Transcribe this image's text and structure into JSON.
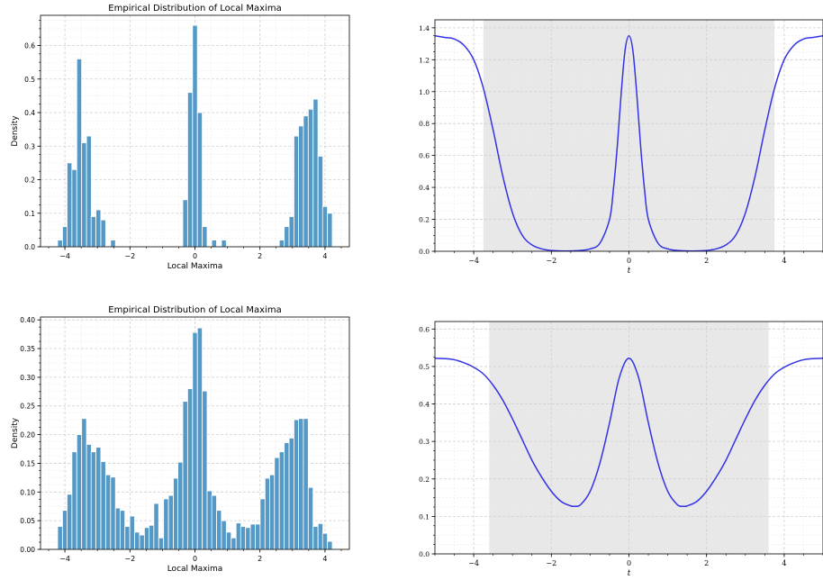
{
  "colors": {
    "bar": "#5599c7",
    "bar_edge": "#ffffff",
    "curve": "#3333e6",
    "shade": "#e8e8e8",
    "grid": "#cfcfcf"
  },
  "chart_data": [
    {
      "id": "hist-top",
      "type": "bar",
      "title": "Empirical Distribution of Local Maxima",
      "xlabel": "Local Maxima",
      "ylabel": "Density",
      "xlim": [
        -4.75,
        4.75
      ],
      "ylim": [
        0,
        0.69
      ],
      "bin_width": 0.148,
      "xticks": [
        -4,
        -2,
        0,
        2,
        4
      ],
      "xtick_labels": [
        "−4",
        "−2",
        "0",
        "2",
        "4"
      ],
      "yticks": [
        0,
        0.1,
        0.2,
        0.3,
        0.4,
        0.5,
        0.6
      ],
      "ytick_labels": [
        "0.0",
        "0.1",
        "0.2",
        "0.3",
        "0.4",
        "0.5",
        "0.6"
      ],
      "grid": true,
      "bins": [
        {
          "x": -4.15,
          "y": 0.02
        },
        {
          "x": -4.0,
          "y": 0.06
        },
        {
          "x": -3.86,
          "y": 0.25
        },
        {
          "x": -3.71,
          "y": 0.23
        },
        {
          "x": -3.56,
          "y": 0.56
        },
        {
          "x": -3.41,
          "y": 0.31
        },
        {
          "x": -3.26,
          "y": 0.33
        },
        {
          "x": -3.12,
          "y": 0.09
        },
        {
          "x": -2.97,
          "y": 0.11
        },
        {
          "x": -2.82,
          "y": 0.08
        },
        {
          "x": -2.52,
          "y": 0.02
        },
        {
          "x": -0.3,
          "y": 0.14
        },
        {
          "x": -0.15,
          "y": 0.46
        },
        {
          "x": 0.0,
          "y": 0.66
        },
        {
          "x": 0.15,
          "y": 0.4
        },
        {
          "x": 0.3,
          "y": 0.06
        },
        {
          "x": 0.59,
          "y": 0.02
        },
        {
          "x": 0.89,
          "y": 0.02
        },
        {
          "x": 2.67,
          "y": 0.02
        },
        {
          "x": 2.82,
          "y": 0.06
        },
        {
          "x": 2.97,
          "y": 0.09
        },
        {
          "x": 3.12,
          "y": 0.33
        },
        {
          "x": 3.26,
          "y": 0.36
        },
        {
          "x": 3.41,
          "y": 0.39
        },
        {
          "x": 3.56,
          "y": 0.41
        },
        {
          "x": 3.71,
          "y": 0.44
        },
        {
          "x": 3.86,
          "y": 0.27
        },
        {
          "x": 4.0,
          "y": 0.12
        },
        {
          "x": 4.15,
          "y": 0.1
        }
      ]
    },
    {
      "id": "curve-top",
      "type": "line",
      "title": "",
      "xlabel": "t",
      "ylabel": "",
      "xlim": [
        -5,
        5
      ],
      "ylim": [
        0,
        1.45
      ],
      "xticks": [
        -4,
        -2,
        0,
        2,
        4
      ],
      "xtick_labels": [
        "−4",
        "−2",
        "0",
        "2",
        "4"
      ],
      "yticks": [
        0,
        0.2,
        0.4,
        0.6,
        0.8,
        1.0,
        1.2,
        1.4
      ],
      "ytick_labels": [
        "0.0",
        "0.2",
        "0.4",
        "0.6",
        "0.8",
        "1.0",
        "1.2",
        "1.4"
      ],
      "grid": true,
      "shaded_region": [
        -3.75,
        3.75
      ],
      "series": [
        {
          "x": [
            -5,
            -4.75,
            -4.5,
            -4.25,
            -4,
            -3.75,
            -3.5,
            -3.25,
            -3,
            -2.75,
            -2.5,
            -2.25,
            -2,
            -1.75,
            -1.5,
            -1.25,
            -1,
            -0.75,
            -0.5,
            -0.4,
            -0.3,
            -0.2,
            -0.1,
            0,
            0.1,
            0.2,
            0.3,
            0.4,
            0.5,
            0.75,
            1,
            1.25,
            1.5,
            1.75,
            2,
            2.25,
            2.5,
            2.75,
            3,
            3.25,
            3.5,
            3.75,
            4,
            4.25,
            4.5,
            4.75,
            5
          ],
          "y": [
            1.35,
            1.34,
            1.33,
            1.29,
            1.2,
            1.02,
            0.76,
            0.47,
            0.24,
            0.1,
            0.04,
            0.015,
            0.005,
            0.002,
            0.002,
            0.005,
            0.015,
            0.05,
            0.2,
            0.39,
            0.66,
            0.99,
            1.26,
            1.35,
            1.26,
            0.99,
            0.66,
            0.39,
            0.2,
            0.05,
            0.015,
            0.005,
            0.002,
            0.002,
            0.005,
            0.015,
            0.04,
            0.1,
            0.24,
            0.47,
            0.76,
            1.02,
            1.2,
            1.29,
            1.33,
            1.34,
            1.35
          ]
        }
      ]
    },
    {
      "id": "hist-bottom",
      "type": "bar",
      "title": "Empirical Distribution of Local Maxima",
      "xlabel": "Local Maxima",
      "ylabel": "Density",
      "xlim": [
        -4.75,
        4.75
      ],
      "ylim": [
        0,
        0.405
      ],
      "bin_width": 0.148,
      "xticks": [
        -4,
        -2,
        0,
        2,
        4
      ],
      "xtick_labels": [
        "−4",
        "−2",
        "0",
        "2",
        "4"
      ],
      "yticks": [
        0,
        0.05,
        0.1,
        0.15,
        0.2,
        0.25,
        0.3,
        0.35,
        0.4
      ],
      "ytick_labels": [
        "0.00",
        "0.05",
        "0.10",
        "0.15",
        "0.20",
        "0.25",
        "0.30",
        "0.35",
        "0.40"
      ],
      "grid": true,
      "bins": [
        {
          "x": -4.15,
          "y": 0.04
        },
        {
          "x": -4.0,
          "y": 0.068
        },
        {
          "x": -3.86,
          "y": 0.096
        },
        {
          "x": -3.71,
          "y": 0.17
        },
        {
          "x": -3.56,
          "y": 0.2
        },
        {
          "x": -3.41,
          "y": 0.228
        },
        {
          "x": -3.26,
          "y": 0.183
        },
        {
          "x": -3.12,
          "y": 0.17
        },
        {
          "x": -2.97,
          "y": 0.178
        },
        {
          "x": -2.82,
          "y": 0.153
        },
        {
          "x": -2.67,
          "y": 0.13
        },
        {
          "x": -2.52,
          "y": 0.126
        },
        {
          "x": -2.37,
          "y": 0.072
        },
        {
          "x": -2.23,
          "y": 0.068
        },
        {
          "x": -2.08,
          "y": 0.04
        },
        {
          "x": -1.93,
          "y": 0.058
        },
        {
          "x": -1.78,
          "y": 0.03
        },
        {
          "x": -1.63,
          "y": 0.025
        },
        {
          "x": -1.48,
          "y": 0.038
        },
        {
          "x": -1.34,
          "y": 0.042
        },
        {
          "x": -1.19,
          "y": 0.08
        },
        {
          "x": -1.04,
          "y": 0.02
        },
        {
          "x": -0.89,
          "y": 0.088
        },
        {
          "x": -0.74,
          "y": 0.094
        },
        {
          "x": -0.59,
          "y": 0.124
        },
        {
          "x": -0.45,
          "y": 0.152
        },
        {
          "x": -0.3,
          "y": 0.258
        },
        {
          "x": -0.15,
          "y": 0.28
        },
        {
          "x": 0.0,
          "y": 0.378
        },
        {
          "x": 0.15,
          "y": 0.386
        },
        {
          "x": 0.3,
          "y": 0.276
        },
        {
          "x": 0.45,
          "y": 0.102
        },
        {
          "x": 0.59,
          "y": 0.094
        },
        {
          "x": 0.74,
          "y": 0.068
        },
        {
          "x": 0.89,
          "y": 0.05
        },
        {
          "x": 1.04,
          "y": 0.03
        },
        {
          "x": 1.19,
          "y": 0.02
        },
        {
          "x": 1.34,
          "y": 0.046
        },
        {
          "x": 1.48,
          "y": 0.04
        },
        {
          "x": 1.63,
          "y": 0.038
        },
        {
          "x": 1.78,
          "y": 0.044
        },
        {
          "x": 1.93,
          "y": 0.044
        },
        {
          "x": 2.08,
          "y": 0.088
        },
        {
          "x": 2.23,
          "y": 0.124
        },
        {
          "x": 2.37,
          "y": 0.13
        },
        {
          "x": 2.52,
          "y": 0.16
        },
        {
          "x": 2.67,
          "y": 0.17
        },
        {
          "x": 2.82,
          "y": 0.186
        },
        {
          "x": 2.97,
          "y": 0.194
        },
        {
          "x": 3.12,
          "y": 0.226
        },
        {
          "x": 3.26,
          "y": 0.228
        },
        {
          "x": 3.41,
          "y": 0.228
        },
        {
          "x": 3.56,
          "y": 0.108
        },
        {
          "x": 3.71,
          "y": 0.04
        },
        {
          "x": 3.86,
          "y": 0.045
        },
        {
          "x": 4.0,
          "y": 0.028
        },
        {
          "x": 4.15,
          "y": 0.014
        }
      ]
    },
    {
      "id": "curve-bottom",
      "type": "line",
      "title": "",
      "xlabel": "t",
      "ylabel": "",
      "xlim": [
        -5,
        5
      ],
      "ylim": [
        0,
        0.62
      ],
      "xticks": [
        -4,
        -2,
        0,
        2,
        4
      ],
      "xtick_labels": [
        "−4",
        "−2",
        "0",
        "2",
        "4"
      ],
      "yticks": [
        0,
        0.1,
        0.2,
        0.3,
        0.4,
        0.5,
        0.6
      ],
      "ytick_labels": [
        "0.0",
        "0.1",
        "0.2",
        "0.3",
        "0.4",
        "0.5",
        "0.6"
      ],
      "grid": true,
      "shaded_region": [
        -3.6,
        3.6
      ],
      "series": [
        {
          "x": [
            -5,
            -4.75,
            -4.5,
            -4.25,
            -4,
            -3.75,
            -3.5,
            -3.25,
            -3,
            -2.75,
            -2.5,
            -2.25,
            -2,
            -1.75,
            -1.5,
            -1.4,
            -1.25,
            -1,
            -0.75,
            -0.5,
            -0.25,
            0,
            0.25,
            0.5,
            0.75,
            1,
            1.25,
            1.4,
            1.5,
            1.75,
            2,
            2.25,
            2.5,
            2.75,
            3,
            3.25,
            3.5,
            3.75,
            4,
            4.25,
            4.5,
            4.75,
            5
          ],
          "y": [
            0.522,
            0.521,
            0.518,
            0.51,
            0.498,
            0.48,
            0.45,
            0.41,
            0.36,
            0.305,
            0.25,
            0.205,
            0.167,
            0.14,
            0.128,
            0.127,
            0.131,
            0.167,
            0.242,
            0.35,
            0.47,
            0.522,
            0.47,
            0.35,
            0.242,
            0.167,
            0.131,
            0.127,
            0.128,
            0.14,
            0.167,
            0.205,
            0.25,
            0.305,
            0.36,
            0.41,
            0.45,
            0.48,
            0.498,
            0.51,
            0.518,
            0.521,
            0.522
          ]
        }
      ]
    }
  ]
}
